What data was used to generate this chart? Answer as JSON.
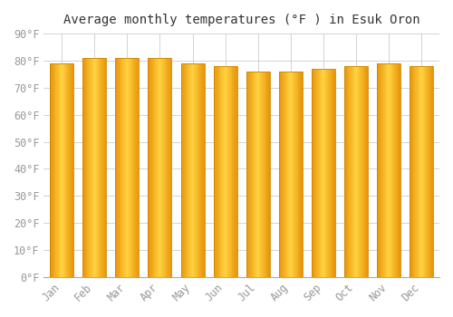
{
  "title": "Average monthly temperatures (°F ) in Esuk Oron",
  "months": [
    "Jan",
    "Feb",
    "Mar",
    "Apr",
    "May",
    "Jun",
    "Jul",
    "Aug",
    "Sep",
    "Oct",
    "Nov",
    "Dec"
  ],
  "values": [
    79,
    81,
    81,
    81,
    79,
    78,
    76,
    76,
    77,
    78,
    79,
    78
  ],
  "bar_color_left": "#E8950A",
  "bar_color_center": "#FFD140",
  "bar_color_right": "#E8950A",
  "bar_edge_color": "#CC8800",
  "background_color": "#FFFFFF",
  "plot_bg_color": "#FFFFFF",
  "grid_color": "#CCCCCC",
  "text_color": "#999999",
  "ylim": [
    0,
    90
  ],
  "ytick_step": 10,
  "title_fontsize": 10,
  "tick_fontsize": 8.5,
  "n_gradient_slices": 30
}
